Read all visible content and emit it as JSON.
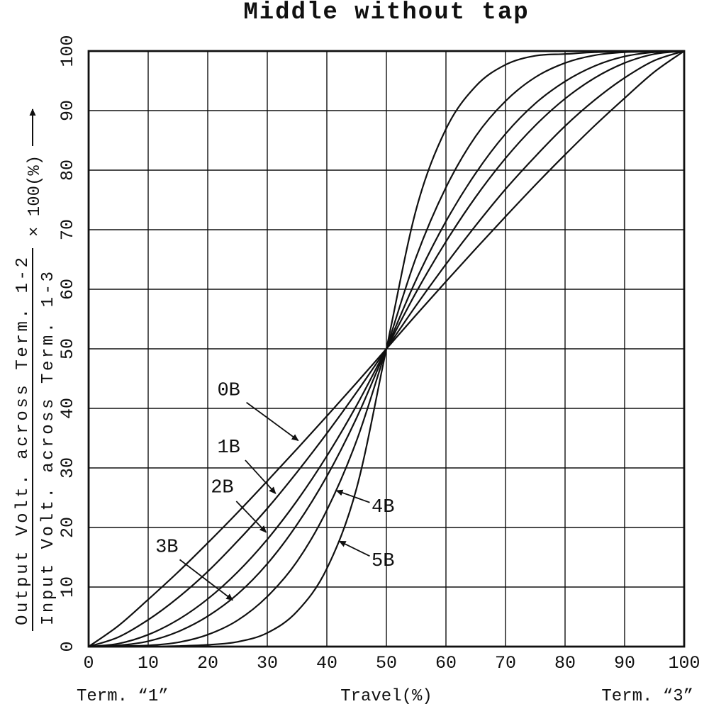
{
  "title": "Middle without tap",
  "colors": {
    "ink": "#101010",
    "background": "#ffffff"
  },
  "chart_data": {
    "type": "line",
    "title": "Middle without tap",
    "xlabel": "Travel(%)",
    "x_left_label": "Term. “1”",
    "x_right_label": "Term. “3”",
    "ylabel_numerator": "Output Volt. across Term. 1-2",
    "ylabel_denominator": "Input Volt. across Term. 1-3",
    "ylabel_suffix": "× 100(%)",
    "xlim": [
      0,
      100
    ],
    "ylim": [
      0,
      100
    ],
    "grid": true,
    "legend_position": "inline-annotations",
    "x_ticks": [
      0,
      10,
      20,
      30,
      40,
      50,
      60,
      70,
      80,
      90,
      100
    ],
    "y_ticks": [
      0,
      10,
      20,
      30,
      40,
      50,
      60,
      70,
      80,
      90,
      100
    ],
    "x": [
      0,
      5,
      10,
      15,
      20,
      25,
      30,
      35,
      40,
      45,
      50,
      55,
      60,
      65,
      70,
      75,
      80,
      85,
      90,
      95,
      100
    ],
    "series": [
      {
        "name": "0B",
        "values": [
          0,
          3.5,
          7.9,
          12.5,
          17.4,
          22.5,
          27.8,
          33.2,
          38.7,
          44.3,
          50,
          55.7,
          61.3,
          66.8,
          72.2,
          77.5,
          82.6,
          87.5,
          92.1,
          96.5,
          100
        ]
      },
      {
        "name": "1B",
        "values": [
          0,
          1.6,
          4.5,
          8.2,
          12.6,
          17.7,
          23.2,
          29.3,
          35.8,
          42.7,
          50,
          57.3,
          64.2,
          70.7,
          76.8,
          82.3,
          87.4,
          91.8,
          95.5,
          98.4,
          100
        ]
      },
      {
        "name": "2B",
        "values": [
          0,
          0.5,
          2.0,
          4.5,
          8.0,
          12.5,
          18.0,
          24.5,
          32.0,
          40.5,
          50,
          59.5,
          68.0,
          75.5,
          82.0,
          87.5,
          92.0,
          95.5,
          98.0,
          99.5,
          100
        ]
      },
      {
        "name": "3B",
        "values": [
          0,
          0.2,
          0.9,
          2.5,
          5.1,
          8.8,
          13.9,
          20.5,
          28.6,
          38.4,
          50,
          61.6,
          71.4,
          79.5,
          86.1,
          91.2,
          94.9,
          97.5,
          99.1,
          99.8,
          100
        ]
      },
      {
        "name": "4B",
        "values": [
          0,
          0.1,
          0.2,
          0.7,
          2.0,
          4.4,
          8.4,
          14.3,
          22.9,
          34.6,
          50,
          65.4,
          77.1,
          85.7,
          91.6,
          95.6,
          98.0,
          99.3,
          99.8,
          99.9,
          100
        ]
      },
      {
        "name": "5B",
        "values": [
          0,
          0,
          0,
          0.1,
          0.3,
          0.8,
          2.3,
          5.9,
          13.1,
          26.6,
          50,
          73.4,
          86.9,
          94.1,
          97.7,
          99.2,
          99.5,
          99.8,
          99.9,
          100,
          100
        ]
      }
    ],
    "annotations": [
      {
        "label": "0B",
        "lx": 21.6,
        "ly": 42.2,
        "sx": 26.5,
        "sy": 41.0,
        "ax": 35.2,
        "ay": 34.6
      },
      {
        "label": "1B",
        "lx": 21.6,
        "ly": 32.6,
        "sx": 26.3,
        "sy": 31.3,
        "ax": 31.4,
        "ay": 25.7
      },
      {
        "label": "2B",
        "lx": 20.5,
        "ly": 25.9,
        "sx": 24.8,
        "sy": 24.4,
        "ax": 29.8,
        "ay": 19.2
      },
      {
        "label": "3B",
        "lx": 11.2,
        "ly": 15.9,
        "sx": 15.3,
        "sy": 14.6,
        "ax": 24.2,
        "ay": 7.8
      },
      {
        "label": "4B",
        "lx": 47.5,
        "ly": 22.6,
        "sx": 47.2,
        "sy": 24.2,
        "ax": 41.6,
        "ay": 26.2
      },
      {
        "label": "5B",
        "lx": 47.5,
        "ly": 13.6,
        "sx": 47.2,
        "sy": 15.2,
        "ax": 42.1,
        "ay": 17.7
      }
    ]
  }
}
